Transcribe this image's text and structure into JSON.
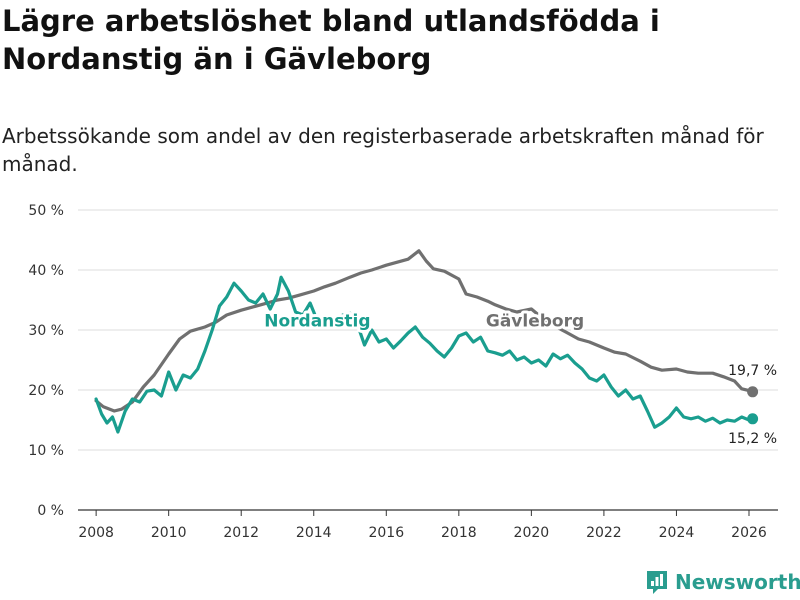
{
  "title": "Lägre arbetslöshet bland utlandsfödda i Nordanstig än i Gävleborg",
  "subtitle": "Arbetssökande som andel av den registerbaserade arbetskraften månad för månad.",
  "brand": {
    "name": "Newsworthy"
  },
  "colors": {
    "nordanstig": "#1a9e8f",
    "gavleborg": "#707070",
    "grid": "#dddddd"
  },
  "chart_data": {
    "type": "line",
    "title": "Lägre arbetslöshet bland utlandsfödda i Nordanstig än i Gävleborg",
    "xlabel": "",
    "ylabel": "",
    "xlim": [
      2007.5,
      2026.8
    ],
    "ylim": [
      0,
      50
    ],
    "y_ticks": [
      0,
      10,
      20,
      30,
      40,
      50
    ],
    "y_tick_labels": [
      "0 %",
      "10 %",
      "20 %",
      "30 %",
      "40 %",
      "50 %"
    ],
    "x_ticks": [
      2008,
      2010,
      2012,
      2014,
      2016,
      2018,
      2020,
      2022,
      2024,
      2026
    ],
    "x_tick_labels": [
      "2008",
      "2010",
      "2012",
      "2014",
      "2016",
      "2018",
      "2020",
      "2022",
      "2024",
      "2026"
    ],
    "grid": true,
    "series": [
      {
        "name": "Gävleborg",
        "label": "Gävleborg",
        "end_label": "19,7 %",
        "points": [
          [
            2008.0,
            18.2
          ],
          [
            2008.2,
            17.2
          ],
          [
            2008.5,
            16.5
          ],
          [
            2008.7,
            16.8
          ],
          [
            2009.0,
            18.0
          ],
          [
            2009.3,
            20.5
          ],
          [
            2009.6,
            22.5
          ],
          [
            2010.0,
            26.0
          ],
          [
            2010.3,
            28.5
          ],
          [
            2010.6,
            29.8
          ],
          [
            2011.0,
            30.5
          ],
          [
            2011.3,
            31.3
          ],
          [
            2011.6,
            32.5
          ],
          [
            2012.0,
            33.3
          ],
          [
            2012.3,
            33.8
          ],
          [
            2012.6,
            34.3
          ],
          [
            2013.0,
            35.0
          ],
          [
            2013.3,
            35.3
          ],
          [
            2013.6,
            35.8
          ],
          [
            2014.0,
            36.5
          ],
          [
            2014.3,
            37.2
          ],
          [
            2014.6,
            37.8
          ],
          [
            2015.0,
            38.8
          ],
          [
            2015.3,
            39.5
          ],
          [
            2015.6,
            40.0
          ],
          [
            2016.0,
            40.8
          ],
          [
            2016.3,
            41.3
          ],
          [
            2016.6,
            41.8
          ],
          [
            2016.9,
            43.2
          ],
          [
            2017.1,
            41.5
          ],
          [
            2017.3,
            40.2
          ],
          [
            2017.6,
            39.8
          ],
          [
            2018.0,
            38.5
          ],
          [
            2018.2,
            36.0
          ],
          [
            2018.5,
            35.5
          ],
          [
            2018.8,
            34.8
          ],
          [
            2019.0,
            34.2
          ],
          [
            2019.3,
            33.5
          ],
          [
            2019.6,
            33.0
          ],
          [
            2020.0,
            33.5
          ],
          [
            2020.3,
            32.0
          ],
          [
            2020.6,
            30.8
          ],
          [
            2021.0,
            29.5
          ],
          [
            2021.3,
            28.5
          ],
          [
            2021.6,
            28.0
          ],
          [
            2022.0,
            27.0
          ],
          [
            2022.3,
            26.3
          ],
          [
            2022.6,
            26.0
          ],
          [
            2023.0,
            24.8
          ],
          [
            2023.3,
            23.8
          ],
          [
            2023.6,
            23.3
          ],
          [
            2024.0,
            23.5
          ],
          [
            2024.3,
            23.0
          ],
          [
            2024.6,
            22.8
          ],
          [
            2025.0,
            22.8
          ],
          [
            2025.3,
            22.2
          ],
          [
            2025.6,
            21.5
          ],
          [
            2025.8,
            20.2
          ],
          [
            2026.0,
            19.9
          ],
          [
            2026.1,
            19.7
          ]
        ]
      },
      {
        "name": "Nordanstig",
        "label": "Nordanstig",
        "end_label": "15,2 %",
        "points": [
          [
            2008.0,
            18.5
          ],
          [
            2008.15,
            16.0
          ],
          [
            2008.3,
            14.5
          ],
          [
            2008.45,
            15.5
          ],
          [
            2008.6,
            13.0
          ],
          [
            2008.8,
            16.5
          ],
          [
            2009.0,
            18.5
          ],
          [
            2009.2,
            18.0
          ],
          [
            2009.4,
            19.8
          ],
          [
            2009.6,
            20.0
          ],
          [
            2009.8,
            19.0
          ],
          [
            2010.0,
            23.0
          ],
          [
            2010.1,
            21.5
          ],
          [
            2010.2,
            20.0
          ],
          [
            2010.4,
            22.5
          ],
          [
            2010.6,
            22.0
          ],
          [
            2010.8,
            23.5
          ],
          [
            2011.0,
            26.5
          ],
          [
            2011.2,
            30.0
          ],
          [
            2011.4,
            34.0
          ],
          [
            2011.6,
            35.5
          ],
          [
            2011.8,
            37.8
          ],
          [
            2012.0,
            36.5
          ],
          [
            2012.2,
            35.0
          ],
          [
            2012.4,
            34.5
          ],
          [
            2012.6,
            36.0
          ],
          [
            2012.8,
            33.5
          ],
          [
            2013.0,
            36.0
          ],
          [
            2013.1,
            38.8
          ],
          [
            2013.3,
            36.5
          ],
          [
            2013.5,
            33.0
          ],
          [
            2013.7,
            32.5
          ],
          [
            2013.9,
            34.5
          ],
          [
            2014.1,
            31.5
          ],
          [
            2014.3,
            30.8
          ],
          [
            2014.5,
            31.0
          ],
          [
            2014.8,
            32.5
          ],
          [
            2015.0,
            32.8
          ],
          [
            2015.2,
            31.0
          ],
          [
            2015.4,
            27.5
          ],
          [
            2015.6,
            30.0
          ],
          [
            2015.8,
            28.0
          ],
          [
            2016.0,
            28.5
          ],
          [
            2016.2,
            27.0
          ],
          [
            2016.4,
            28.2
          ],
          [
            2016.6,
            29.5
          ],
          [
            2016.8,
            30.5
          ],
          [
            2017.0,
            28.8
          ],
          [
            2017.2,
            27.8
          ],
          [
            2017.4,
            26.5
          ],
          [
            2017.6,
            25.5
          ],
          [
            2017.8,
            27.0
          ],
          [
            2018.0,
            29.0
          ],
          [
            2018.2,
            29.5
          ],
          [
            2018.4,
            28.0
          ],
          [
            2018.6,
            28.8
          ],
          [
            2018.8,
            26.5
          ],
          [
            2019.0,
            26.2
          ],
          [
            2019.2,
            25.8
          ],
          [
            2019.4,
            26.5
          ],
          [
            2019.6,
            25.0
          ],
          [
            2019.8,
            25.5
          ],
          [
            2020.0,
            24.5
          ],
          [
            2020.2,
            25.0
          ],
          [
            2020.4,
            24.0
          ],
          [
            2020.6,
            26.0
          ],
          [
            2020.8,
            25.2
          ],
          [
            2021.0,
            25.8
          ],
          [
            2021.2,
            24.5
          ],
          [
            2021.4,
            23.5
          ],
          [
            2021.6,
            22.0
          ],
          [
            2021.8,
            21.5
          ],
          [
            2022.0,
            22.5
          ],
          [
            2022.2,
            20.5
          ],
          [
            2022.4,
            19.0
          ],
          [
            2022.6,
            20.0
          ],
          [
            2022.8,
            18.5
          ],
          [
            2023.0,
            19.0
          ],
          [
            2023.2,
            16.5
          ],
          [
            2023.4,
            13.8
          ],
          [
            2023.6,
            14.5
          ],
          [
            2023.8,
            15.5
          ],
          [
            2024.0,
            17.0
          ],
          [
            2024.2,
            15.5
          ],
          [
            2024.4,
            15.2
          ],
          [
            2024.6,
            15.5
          ],
          [
            2024.8,
            14.8
          ],
          [
            2025.0,
            15.3
          ],
          [
            2025.2,
            14.5
          ],
          [
            2025.4,
            15.0
          ],
          [
            2025.6,
            14.8
          ],
          [
            2025.8,
            15.5
          ],
          [
            2026.0,
            15.0
          ],
          [
            2026.1,
            15.2
          ]
        ]
      }
    ]
  }
}
